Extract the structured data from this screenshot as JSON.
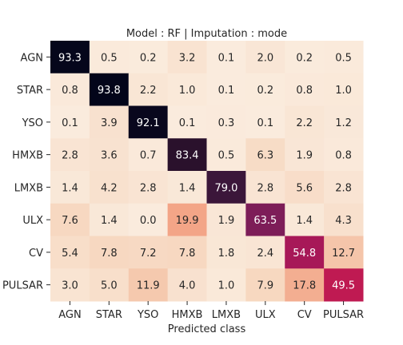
{
  "chart_data": {
    "type": "heatmap",
    "title": "Model : RF | Imputation : mode",
    "xlabel": "Predicted class",
    "ylabel": "",
    "x_labels": [
      "AGN",
      "STAR",
      "YSO",
      "HMXB",
      "LMXB",
      "ULX",
      "CV",
      "PULSAR"
    ],
    "y_labels": [
      "AGN",
      "STAR",
      "YSO",
      "HMXB",
      "LMXB",
      "ULX",
      "CV",
      "PULSAR"
    ],
    "values": [
      [
        93.3,
        0.5,
        0.2,
        3.2,
        0.1,
        2.0,
        0.2,
        0.5
      ],
      [
        0.8,
        93.8,
        2.2,
        1.0,
        0.1,
        0.2,
        0.8,
        1.0
      ],
      [
        0.1,
        3.9,
        92.1,
        0.1,
        0.3,
        0.1,
        2.2,
        1.2
      ],
      [
        2.8,
        3.6,
        0.7,
        83.4,
        0.5,
        6.3,
        1.9,
        0.8
      ],
      [
        1.4,
        4.2,
        2.8,
        1.4,
        79.0,
        2.8,
        5.6,
        2.8
      ],
      [
        7.6,
        1.4,
        0.0,
        19.9,
        1.9,
        63.5,
        1.4,
        4.3
      ],
      [
        5.4,
        7.8,
        7.2,
        7.8,
        1.8,
        2.4,
        54.8,
        12.7
      ],
      [
        3.0,
        5.0,
        11.9,
        4.0,
        1.0,
        7.9,
        17.8,
        49.5
      ]
    ],
    "vmin": 0,
    "vmax": 93.8,
    "colormap": "rocket_r",
    "colorbar": false
  }
}
